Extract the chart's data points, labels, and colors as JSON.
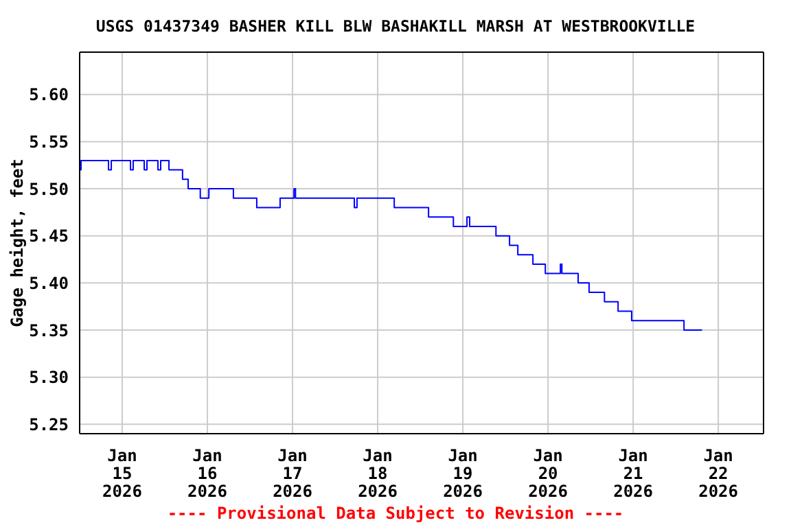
{
  "chart_data": {
    "type": "step",
    "title": "USGS 01437349 BASHER KILL BLW BASHAKILL MARSH AT WESTBROOKVILLE",
    "ylabel": "Gage height, feet",
    "annotations": [
      "---- Provisional Data Subject to Revision ----"
    ],
    "x": [
      "2026-01-14T12:00",
      "2026-01-14T12:23",
      "2026-01-14T20:08",
      "2026-01-14T20:55",
      "2026-01-15T02:20",
      "2026-01-15T03:05",
      "2026-01-15T06:12",
      "2026-01-15T06:58",
      "2026-01-15T10:04",
      "2026-01-15T10:50",
      "2026-01-15T13:10",
      "2026-01-15T17:00",
      "2026-01-15T18:35",
      "2026-01-15T22:00",
      "2026-01-15T23:35",
      "2026-01-16T00:25",
      "2026-01-16T07:20",
      "2026-01-16T13:55",
      "2026-01-16T20:30",
      "2026-01-17T00:25",
      "2026-01-17T00:50",
      "2026-01-17T17:25",
      "2026-01-17T18:10",
      "2026-01-18T04:40",
      "2026-01-18T14:20",
      "2026-01-18T21:20",
      "2026-01-19T01:10",
      "2026-01-19T01:55",
      "2026-01-19T09:20",
      "2026-01-19T13:10",
      "2026-01-19T15:30",
      "2026-01-19T19:45",
      "2026-01-19T23:15",
      "2026-01-20T03:30",
      "2026-01-20T03:55",
      "2026-01-20T08:30",
      "2026-01-20T11:35",
      "2026-01-20T15:55",
      "2026-01-20T19:45",
      "2026-01-20T23:35",
      "2026-01-21T14:20",
      "2026-01-21T19:25"
    ],
    "series": [
      {
        "color": "#0000ff",
        "values": [
          5.52,
          5.53,
          5.52,
          5.53,
          5.52,
          5.53,
          5.52,
          5.53,
          5.52,
          5.53,
          5.52,
          5.51,
          5.5,
          5.49,
          5.49,
          5.5,
          5.49,
          5.48,
          5.49,
          5.5,
          5.49,
          5.48,
          5.49,
          5.48,
          5.47,
          5.46,
          5.47,
          5.46,
          5.45,
          5.44,
          5.43,
          5.42,
          5.41,
          5.42,
          5.41,
          5.4,
          5.39,
          5.38,
          5.37,
          5.36,
          5.35,
          5.35
        ]
      }
    ],
    "xlim": [
      "2026-01-14T12:00",
      "2026-01-22T12:45"
    ],
    "xticks": [
      {
        "value": "2026-01-15",
        "label": "Jan\n15\n2026"
      },
      {
        "value": "2026-01-16",
        "label": "Jan\n16\n2026"
      },
      {
        "value": "2026-01-17",
        "label": "Jan\n17\n2026"
      },
      {
        "value": "2026-01-18",
        "label": "Jan\n18\n2026"
      },
      {
        "value": "2026-01-19",
        "label": "Jan\n19\n2026"
      },
      {
        "value": "2026-01-20",
        "label": "Jan\n20\n2026"
      },
      {
        "value": "2026-01-21",
        "label": "Jan\n21\n2026"
      },
      {
        "value": "2026-01-22",
        "label": "Jan\n22\n2026"
      }
    ],
    "ylim": [
      5.24,
      5.645
    ],
    "yticks": [
      {
        "value": 5.25,
        "label": "5.25"
      },
      {
        "value": 5.3,
        "label": "5.30"
      },
      {
        "value": 5.35,
        "label": "5.35"
      },
      {
        "value": 5.4,
        "label": "5.40"
      },
      {
        "value": 5.45,
        "label": "5.45"
      },
      {
        "value": 5.5,
        "label": "5.50"
      },
      {
        "value": 5.55,
        "label": "5.55"
      },
      {
        "value": 5.6,
        "label": "5.60"
      }
    ],
    "grid": true,
    "line_style": "solid",
    "marker": "none"
  }
}
